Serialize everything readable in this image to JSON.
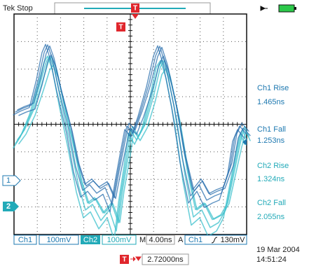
{
  "header": {
    "status": "Tek Stop"
  },
  "markers": {
    "trigger": "T",
    "ch1": "1",
    "ch2": "2"
  },
  "measurements": [
    {
      "label": "Ch1 Rise",
      "value": "1.465ns"
    },
    {
      "label": "Ch1 Fall",
      "value": "1.253ns"
    },
    {
      "label": "Ch2 Rise",
      "value": "1.324ns"
    },
    {
      "label": "Ch2 Fall",
      "value": "2.055ns"
    }
  ],
  "status_bar": {
    "ch1": "Ch1",
    "ch1_scale": "100mV",
    "ch2": "Ch2",
    "ch2_scale": "100mV",
    "timebase_label": "M",
    "timebase": "4.00ns",
    "trigger_label": "A",
    "trigger_source": "Ch1",
    "trigger_level": "130mV"
  },
  "footer": {
    "date": "19 Mar 2004",
    "time": "14:51:24",
    "trigger_position": "2.72000ns"
  }
}
